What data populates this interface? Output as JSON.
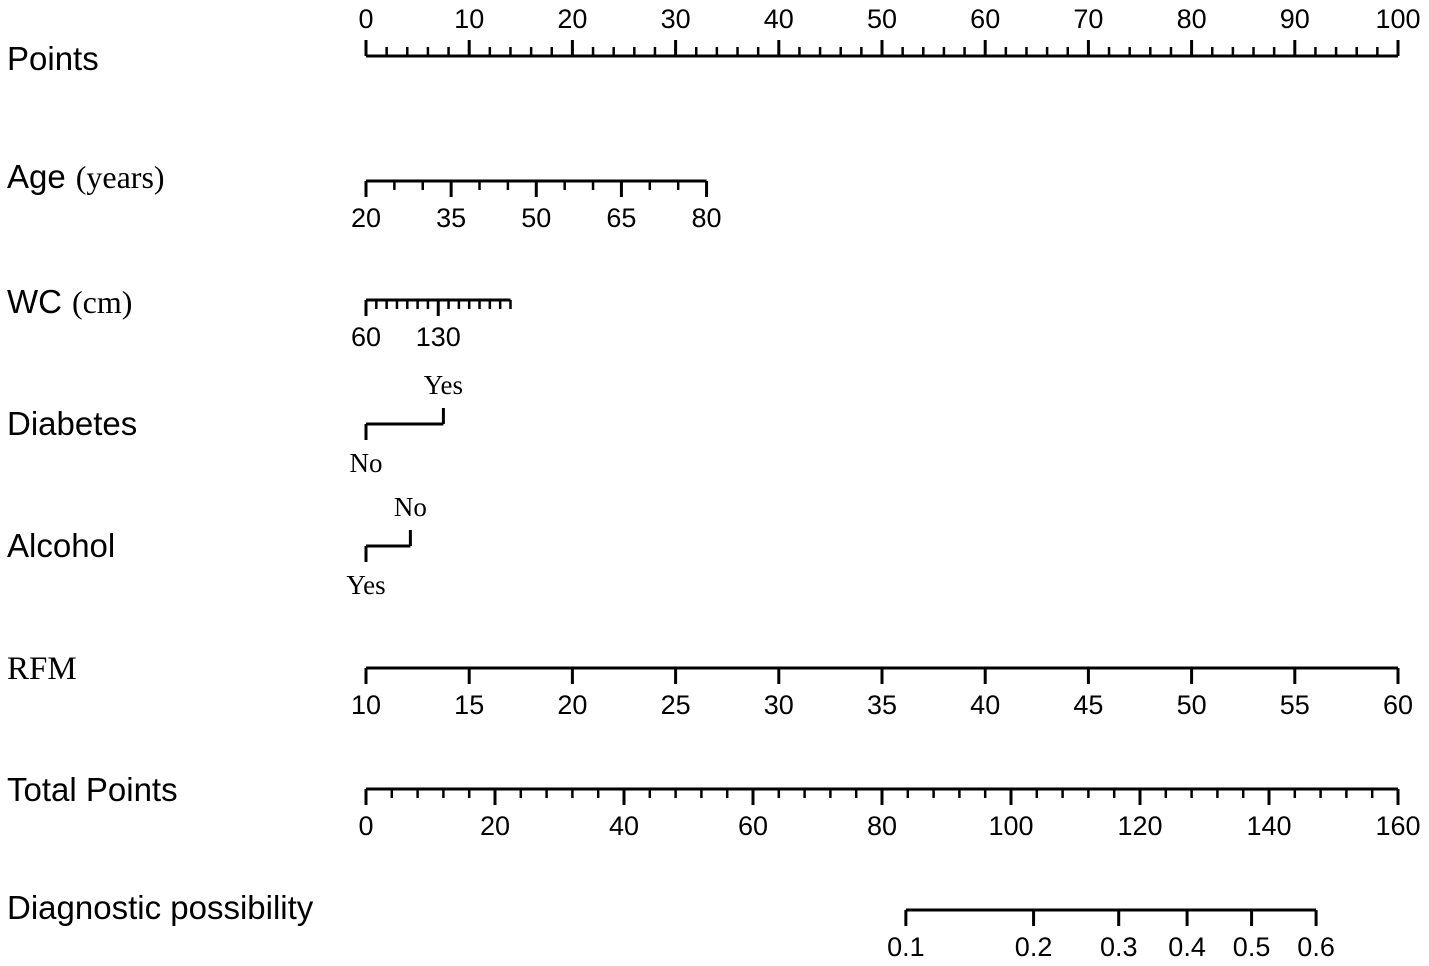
{
  "chart_data": {
    "type": "nomogram",
    "title": "",
    "rows": [
      {
        "id": "points",
        "label": "Points",
        "unit": "",
        "kind": "numeric",
        "points_range": [
          0,
          100
        ],
        "value_range": [
          0,
          100
        ],
        "tick_labels": [
          "0",
          "10",
          "20",
          "30",
          "40",
          "50",
          "60",
          "70",
          "80",
          "90",
          "100"
        ],
        "tick_values": [
          0,
          10,
          20,
          30,
          40,
          50,
          60,
          70,
          80,
          90,
          100
        ],
        "minor_step": 2,
        "labels_position": "above"
      },
      {
        "id": "age",
        "label": "Age",
        "unit": "(years)",
        "kind": "numeric",
        "points_range": [
          0,
          33
        ],
        "value_range": [
          20,
          80
        ],
        "tick_labels": [
          "20",
          "35",
          "50",
          "65",
          "80"
        ],
        "tick_values": [
          20,
          35,
          50,
          65,
          80
        ],
        "minor_step": 5,
        "labels_position": "below"
      },
      {
        "id": "wc",
        "label": "WC",
        "unit": "(cm)",
        "kind": "numeric",
        "points_range": [
          0,
          14
        ],
        "value_range": [
          60,
          200
        ],
        "tick_labels": [
          "60",
          "130"
        ],
        "tick_values": [
          60,
          130
        ],
        "minor_step": 10,
        "labels_position": "below"
      },
      {
        "id": "diabetes",
        "label": "Diabetes",
        "unit": "",
        "kind": "categorical",
        "categories": [
          {
            "label": "No",
            "points": 0,
            "label_position": "below"
          },
          {
            "label": "Yes",
            "points": 7.5,
            "label_position": "above"
          }
        ]
      },
      {
        "id": "alcohol",
        "label": "Alcohol",
        "unit": "",
        "kind": "categorical",
        "categories": [
          {
            "label": "Yes",
            "points": 0,
            "label_position": "below"
          },
          {
            "label": "No",
            "points": 4.3,
            "label_position": "above"
          }
        ]
      },
      {
        "id": "rfm",
        "label": "RFM",
        "unit": "",
        "kind": "numeric",
        "points_range": [
          0,
          100
        ],
        "value_range": [
          10,
          60
        ],
        "tick_labels": [
          "10",
          "15",
          "20",
          "25",
          "30",
          "35",
          "40",
          "45",
          "50",
          "55",
          "60"
        ],
        "tick_values": [
          10,
          15,
          20,
          25,
          30,
          35,
          40,
          45,
          50,
          55,
          60
        ],
        "minor_step": 5,
        "labels_position": "below"
      },
      {
        "id": "total",
        "label": "Total Points",
        "unit": "",
        "kind": "numeric",
        "points_range": [
          0,
          100
        ],
        "value_range": [
          0,
          160
        ],
        "tick_labels": [
          "0",
          "20",
          "40",
          "60",
          "80",
          "100",
          "120",
          "140",
          "160"
        ],
        "tick_values": [
          0,
          20,
          40,
          60,
          80,
          100,
          120,
          140,
          160
        ],
        "minor_step": 4,
        "labels_position": "below"
      },
      {
        "id": "probability",
        "label": "Diagnostic possibility",
        "unit": "",
        "kind": "probability",
        "tick_labels": [
          "0.1",
          "0.2",
          "0.3",
          "0.4",
          "0.5",
          "0.6"
        ],
        "tick_values": [
          0.1,
          0.2,
          0.3,
          0.4,
          0.5,
          0.6
        ],
        "total_points_at_ticks": [
          83.7,
          103.5,
          116.7,
          127.3,
          137.3,
          147.3
        ],
        "labels_position": "below"
      }
    ]
  }
}
